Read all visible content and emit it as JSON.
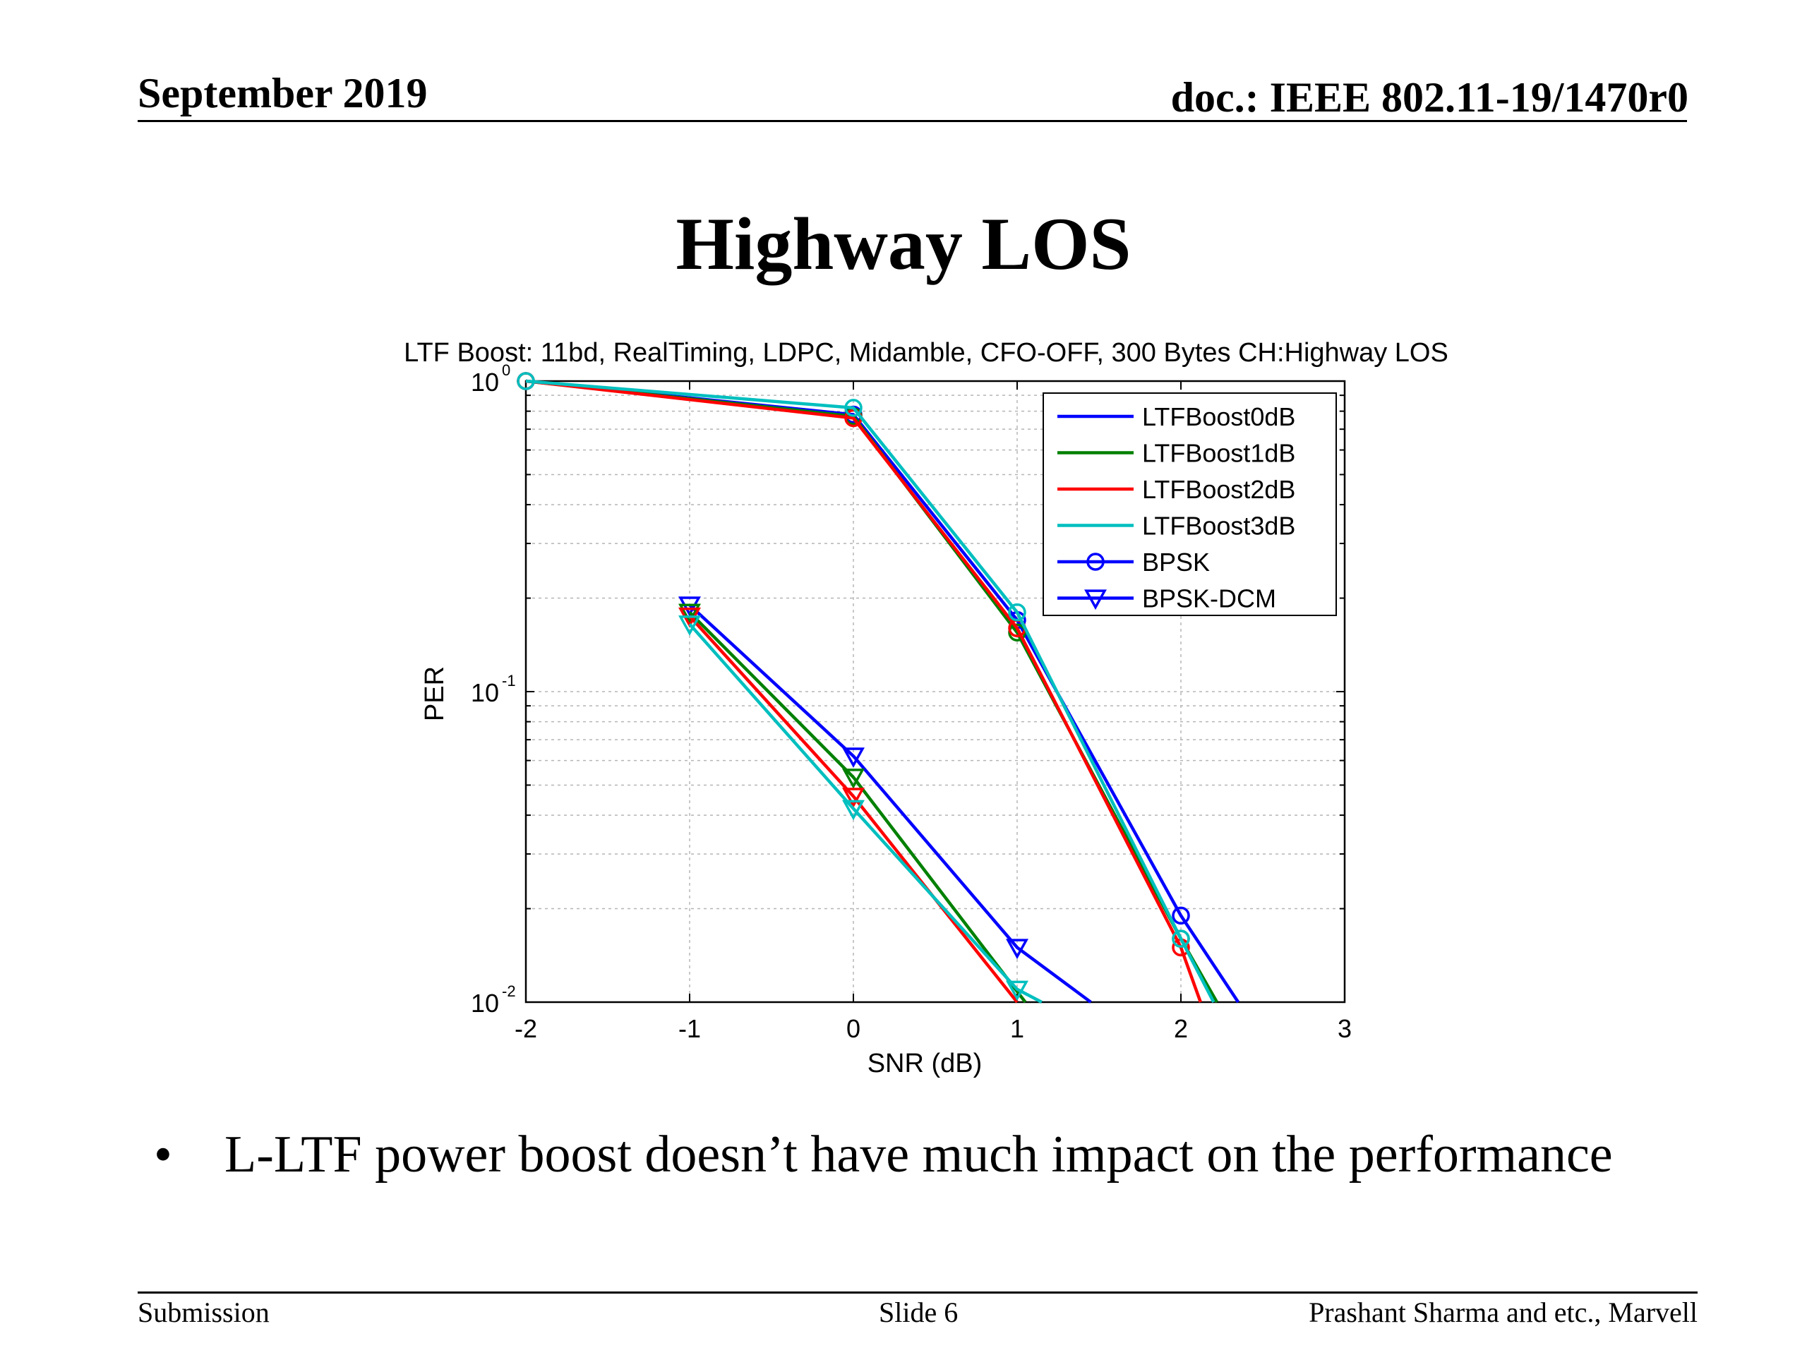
{
  "header": {
    "date": "September 2019",
    "doc": "doc.: IEEE 802.11-19/1470r0"
  },
  "slide_title": "Highway LOS",
  "chart_data": {
    "type": "line",
    "title": "LTF Boost: 11bd, RealTiming, LDPC, Midamble, CFO-OFF, 300 Bytes CH:Highway LOS",
    "xlabel": "SNR (dB)",
    "ylabel": "PER",
    "xlim": [
      -2,
      3
    ],
    "ylim": [
      0.01,
      1
    ],
    "yscale": "log",
    "grid": true,
    "xticks": [
      -2,
      -1,
      0,
      1,
      2,
      3
    ],
    "xtick_labels": [
      "-2",
      "-1",
      "0",
      "1",
      "2",
      "3"
    ],
    "yticks": [
      {
        "value": 1,
        "base": "10",
        "exp": "0"
      },
      {
        "value": 0.1,
        "base": "10",
        "exp": "-1"
      },
      {
        "value": 0.01,
        "base": "10",
        "exp": "-2"
      }
    ],
    "legend": {
      "position": "top-right",
      "entries": [
        {
          "label": "LTFBoost0dB",
          "color": "#0000ff",
          "marker": "none"
        },
        {
          "label": "LTFBoost1dB",
          "color": "#008000",
          "marker": "none"
        },
        {
          "label": "LTFBoost2dB",
          "color": "#ff0000",
          "marker": "none"
        },
        {
          "label": "LTFBoost3dB",
          "color": "#00bfbf",
          "marker": "none"
        },
        {
          "label": "BPSK",
          "color": "#0000ff",
          "marker": "circle"
        },
        {
          "label": "BPSK-DCM",
          "color": "#0000ff",
          "marker": "triangle-down"
        }
      ]
    },
    "series": [
      {
        "name": "LTFBoost0dB BPSK",
        "boost": "LTFBoost0dB",
        "modulation": "BPSK",
        "color": "#0000ff",
        "marker": "circle",
        "x": [
          -2,
          0,
          1,
          2,
          2.35
        ],
        "y": [
          1.0,
          0.78,
          0.17,
          0.019,
          0.01
        ]
      },
      {
        "name": "LTFBoost1dB BPSK",
        "boost": "LTFBoost1dB",
        "modulation": "BPSK",
        "color": "#008000",
        "marker": "circle",
        "x": [
          -2,
          0,
          1,
          2,
          2.22
        ],
        "y": [
          1.0,
          0.77,
          0.155,
          0.016,
          0.01
        ]
      },
      {
        "name": "LTFBoost2dB BPSK",
        "boost": "LTFBoost2dB",
        "modulation": "BPSK",
        "color": "#ff0000",
        "marker": "circle",
        "x": [
          -2,
          0,
          1,
          2,
          2.12
        ],
        "y": [
          1.0,
          0.76,
          0.16,
          0.015,
          0.01
        ]
      },
      {
        "name": "LTFBoost3dB BPSK",
        "boost": "LTFBoost3dB",
        "modulation": "BPSK",
        "color": "#00bfbf",
        "marker": "circle",
        "x": [
          -2,
          0,
          1,
          2,
          2.2
        ],
        "y": [
          1.0,
          0.82,
          0.18,
          0.016,
          0.01
        ]
      },
      {
        "name": "LTFBoost0dB BPSK-DCM",
        "boost": "LTFBoost0dB",
        "modulation": "BPSK-DCM",
        "color": "#0000ff",
        "marker": "triangle-down",
        "x": [
          -1,
          0,
          1,
          1.45
        ],
        "y": [
          0.19,
          0.062,
          0.015,
          0.01
        ]
      },
      {
        "name": "LTFBoost1dB BPSK-DCM",
        "boost": "LTFBoost1dB",
        "modulation": "BPSK-DCM",
        "color": "#008000",
        "marker": "triangle-down",
        "x": [
          -1,
          0,
          1.05
        ],
        "y": [
          0.18,
          0.053,
          0.01
        ]
      },
      {
        "name": "LTFBoost2dB BPSK-DCM",
        "boost": "LTFBoost2dB",
        "modulation": "BPSK-DCM",
        "color": "#ff0000",
        "marker": "triangle-down",
        "x": [
          -1,
          0,
          1
        ],
        "y": [
          0.175,
          0.046,
          0.01
        ]
      },
      {
        "name": "LTFBoost3dB BPSK-DCM",
        "boost": "LTFBoost3dB",
        "modulation": "BPSK-DCM",
        "color": "#00bfbf",
        "marker": "triangle-down",
        "x": [
          -1,
          0,
          1,
          1.15
        ],
        "y": [
          0.165,
          0.042,
          0.011,
          0.01
        ]
      }
    ]
  },
  "bullet": {
    "symbol": "•",
    "text": "L-LTF power boost doesn’t have much impact on the performance"
  },
  "footer": {
    "left": "Submission",
    "center": "Slide 6",
    "right": "Prashant Sharma and etc., Marvell"
  }
}
